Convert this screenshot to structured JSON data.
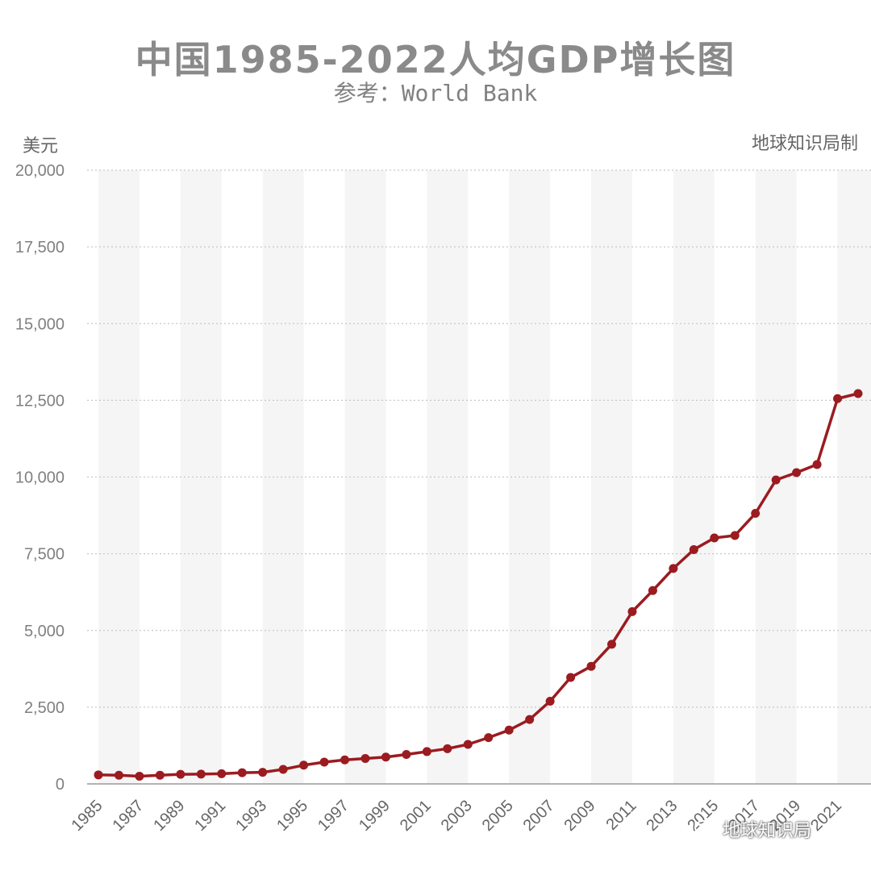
{
  "header": {
    "title": "中国1985-2022人均GDP增长图",
    "subtitle": "参考：World Bank",
    "unit_label": "美元",
    "credit": "地球知识局制"
  },
  "watermark": {
    "text": "地球知识局"
  },
  "colors": {
    "line": "#9b1b20",
    "grid": "#c8c8c8",
    "band": "#f5f5f5",
    "axis_text": "#808080"
  },
  "chart_data": {
    "type": "line",
    "title": "中国1985-2022人均GDP增长图",
    "subtitle": "参考：World Bank",
    "xlabel": "",
    "ylabel": "美元",
    "ylim": [
      0,
      20000
    ],
    "yticks": [
      0,
      2500,
      5000,
      7500,
      10000,
      12500,
      15000,
      17500,
      20000
    ],
    "ytick_labels": [
      "0",
      "2,500",
      "5,000",
      "7,500",
      "10,000",
      "12,500",
      "15,000",
      "17,500",
      "20,000"
    ],
    "xtick_labels": [
      "1985",
      "1987",
      "1989",
      "1991",
      "1993",
      "1995",
      "1997",
      "1999",
      "2001",
      "2003",
      "2005",
      "2007",
      "2009",
      "2011",
      "2013",
      "2015",
      "2017",
      "2019",
      "2021"
    ],
    "grid": true,
    "series": [
      {
        "x": [
          1985,
          1986,
          1987,
          1988,
          1989,
          1990,
          1991,
          1992,
          1993,
          1994,
          1995,
          1996,
          1997,
          1998,
          1999,
          2000,
          2001,
          2002,
          2003,
          2004,
          2005,
          2006,
          2007,
          2008,
          2009,
          2010,
          2011,
          2012,
          2013,
          2014,
          2015,
          2016,
          2017,
          2018,
          2019,
          2020,
          2021,
          2022
        ],
        "values": [
          294,
          282,
          251,
          284,
          311,
          318,
          333,
          366,
          377,
          473,
          610,
          709,
          782,
          829,
          873,
          959,
          1053,
          1148,
          1288,
          1508,
          1753,
          2099,
          2694,
          3468,
          3832,
          4550,
          5614,
          6301,
          7020,
          7636,
          8016,
          8094,
          8817,
          9905,
          10144,
          10409,
          12556,
          12720
        ]
      }
    ]
  }
}
